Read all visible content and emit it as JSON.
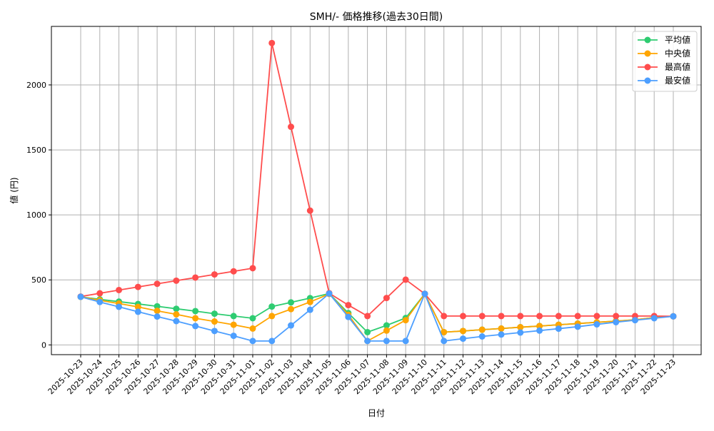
{
  "chart_data": {
    "type": "line",
    "title": "SMH/- 価格推移(過去30日間)",
    "xlabel": "日付",
    "ylabel": "値 (円)",
    "ylim": [
      -75,
      2450
    ],
    "yticks": [
      0,
      500,
      1000,
      1500,
      2000
    ],
    "grid": true,
    "legend_position": "top-right",
    "categories": [
      "2025-10-23",
      "2025-10-24",
      "2025-10-25",
      "2025-10-26",
      "2025-10-27",
      "2025-10-28",
      "2025-10-29",
      "2025-10-30",
      "2025-10-31",
      "2025-11-01",
      "2025-11-02",
      "2025-11-03",
      "2025-11-04",
      "2025-11-05",
      "2025-11-06",
      "2025-11-07",
      "2025-11-08",
      "2025-11-09",
      "2025-11-10",
      "2025-11-11",
      "2025-11-12",
      "2025-11-13",
      "2025-11-14",
      "2025-11-15",
      "2025-11-16",
      "2025-11-17",
      "2025-11-18",
      "2025-11-19",
      "2025-11-20",
      "2025-11-21",
      "2025-11-22",
      "2025-11-23"
    ],
    "series": [
      {
        "name": "平均値",
        "color": "#2ecc71",
        "values": [
          370,
          350,
          333,
          315,
          297,
          278,
          260,
          240,
          222,
          205,
          295,
          327,
          360,
          395,
          245,
          98,
          150,
          207,
          393,
          98,
          107,
          117,
          126,
          136,
          145,
          155,
          164,
          174,
          183,
          193,
          210,
          220
        ]
      },
      {
        "name": "中央値",
        "color": "#ffa500",
        "values": [
          370,
          343,
          318,
          292,
          262,
          235,
          205,
          180,
          155,
          126,
          222,
          275,
          330,
          392,
          232,
          30,
          110,
          190,
          393,
          98,
          107,
          117,
          126,
          136,
          145,
          155,
          164,
          174,
          183,
          193,
          210,
          220
        ]
      },
      {
        "name": "最高値",
        "color": "#ff4d4d",
        "values": [
          372,
          397,
          422,
          446,
          470,
          494,
          518,
          542,
          566,
          590,
          2322,
          1678,
          1033,
          398,
          306,
          222,
          361,
          502,
          393,
          222,
          222,
          222,
          222,
          222,
          222,
          222,
          222,
          222,
          222,
          222,
          222,
          220
        ]
      },
      {
        "name": "最安値",
        "color": "#4d9fff",
        "values": [
          370,
          330,
          293,
          255,
          218,
          183,
          145,
          107,
          70,
          30,
          30,
          150,
          270,
          395,
          215,
          30,
          30,
          30,
          393,
          30,
          48,
          65,
          80,
          95,
          110,
          125,
          140,
          158,
          175,
          190,
          205,
          220
        ]
      }
    ]
  }
}
